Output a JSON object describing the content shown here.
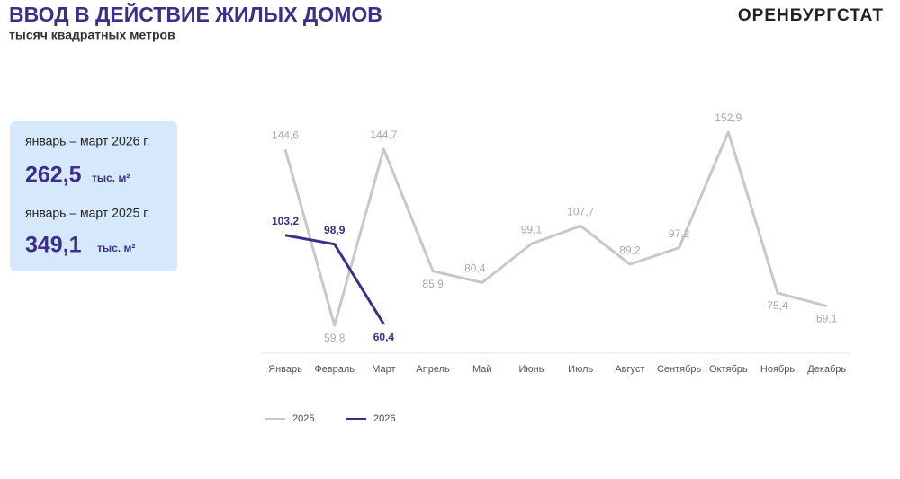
{
  "header": {
    "title": "ВВОД В ДЕЙСТВИЕ ЖИЛЫХ ДОМОВ",
    "subtitle": "тысяч квадратных метров",
    "brand": "ОРЕНБУРГСТАТ"
  },
  "summary": [
    {
      "period": "январь – март 2026 г.",
      "value": "262,5",
      "unit": "тыс. м²"
    },
    {
      "period": "январь – март 2025 г.",
      "value": "349,1",
      "unit": "тыс. м²"
    }
  ],
  "chart_data": {
    "type": "line",
    "categories": [
      "Январь",
      "Февраль",
      "Март",
      "Апрель",
      "Май",
      "Июнь",
      "Июль",
      "Август",
      "Сентябрь",
      "Октябрь",
      "Ноябрь",
      "Декабрь"
    ],
    "series": [
      {
        "name": "2025",
        "color": "#c8c8c8",
        "values": [
          144.6,
          59.8,
          144.7,
          85.9,
          80.4,
          99.1,
          107.7,
          89.2,
          97.2,
          152.9,
          75.4,
          69.1
        ],
        "value_labels": [
          "144,6",
          "59,8",
          "144,7",
          "85,9",
          "80,4",
          "99,1",
          "107,7",
          "89,2",
          "97,2",
          "152,9",
          "75,4",
          "69,1"
        ]
      },
      {
        "name": "2026",
        "color": "#3b2f8c",
        "values": [
          103.2,
          98.9,
          60.4,
          null,
          null,
          null,
          null,
          null,
          null,
          null,
          null,
          null
        ],
        "value_labels": [
          "103,2",
          "98,9",
          "60,4",
          null,
          null,
          null,
          null,
          null,
          null,
          null,
          null,
          null
        ]
      }
    ],
    "legend": "bottom",
    "grid": false
  }
}
